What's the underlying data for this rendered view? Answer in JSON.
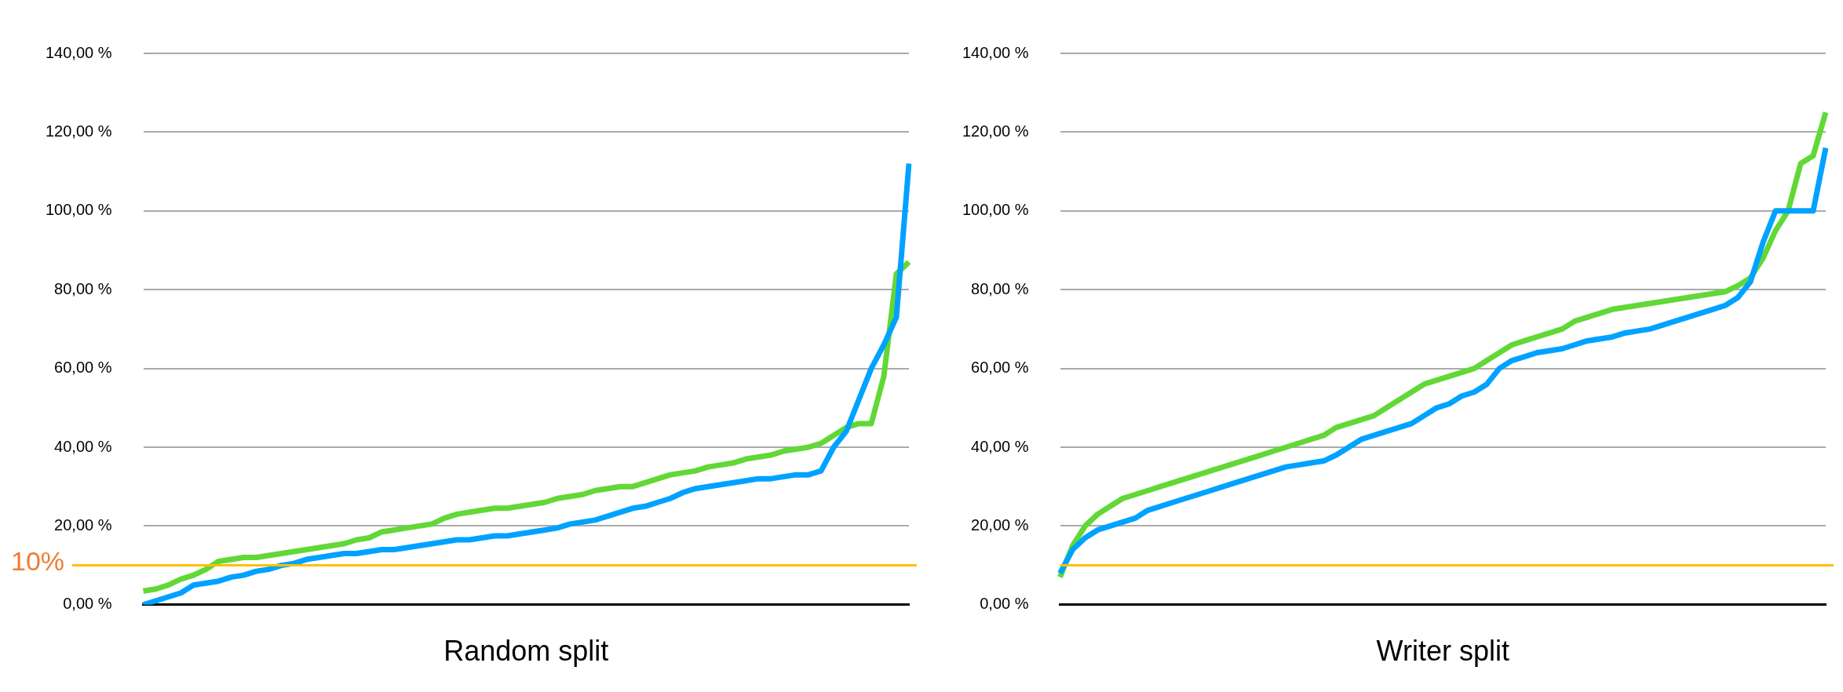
{
  "chart_data": [
    {
      "type": "line",
      "xlabel": "Random split",
      "categories": [
        null,
        null,
        null,
        null,
        null,
        null,
        null,
        null,
        null,
        null,
        null,
        null,
        null,
        null,
        null,
        null,
        null,
        null,
        null,
        null,
        null,
        null,
        null,
        null,
        null,
        null,
        null,
        null,
        null,
        null,
        null,
        null,
        null,
        null,
        null,
        null,
        null,
        null,
        null,
        null,
        null,
        null,
        null,
        null,
        null,
        null,
        null,
        null,
        null,
        null,
        null,
        null,
        null,
        null,
        null,
        null,
        null,
        null,
        null,
        null,
        null,
        null
      ],
      "series": [
        {
          "color": "#00a2ff",
          "values": [
            0,
            1,
            2,
            3,
            5,
            5.5,
            6,
            7,
            7.5,
            8.5,
            9,
            10,
            10.5,
            11.5,
            12,
            12.5,
            13,
            13,
            13.5,
            14,
            14,
            14.5,
            15,
            15.5,
            16,
            16.5,
            16.5,
            17,
            17.5,
            17.5,
            18,
            18.5,
            19,
            19.5,
            20.5,
            21,
            21.5,
            22.5,
            23.5,
            24.5,
            25,
            26,
            27,
            28.5,
            29.5,
            30,
            30.5,
            31,
            31.5,
            32,
            32,
            32.5,
            33,
            33,
            34,
            40,
            44,
            52,
            60,
            66,
            73,
            112
          ]
        },
        {
          "color": "#61d836",
          "values": [
            3.5,
            4,
            5,
            6.5,
            7.5,
            9,
            11,
            11.5,
            12,
            12,
            12.5,
            13,
            13.5,
            14,
            14.5,
            15,
            15.5,
            16.5,
            17,
            18.5,
            19,
            19.5,
            20,
            20.5,
            22,
            23,
            23.5,
            24,
            24.5,
            24.5,
            25,
            25.5,
            26,
            27,
            27.5,
            28,
            29,
            29.5,
            30,
            30,
            31,
            32,
            33,
            33.5,
            34,
            35,
            35.5,
            36,
            37,
            37.5,
            38,
            39,
            39.5,
            40,
            41,
            43,
            45,
            46,
            46,
            58,
            84,
            87
          ]
        }
      ],
      "ylim": [
        0,
        140
      ],
      "yticks": [
        {
          "value": 0,
          "label": "0,00 %"
        },
        {
          "value": 20,
          "label": "20,00 %"
        },
        {
          "value": 40,
          "label": "40,00 %"
        },
        {
          "value": 60,
          "label": "60,00 %"
        },
        {
          "value": 80,
          "label": "80,00 %"
        },
        {
          "value": 100,
          "label": "100,00 %"
        },
        {
          "value": 120,
          "label": "120,00 %"
        },
        {
          "value": 140,
          "label": "140,00 %"
        }
      ],
      "grid": "y",
      "legend": false,
      "marker": "none",
      "line_style": "solid",
      "tick_labels": "y",
      "ref_lines": [
        {
          "axis": "y",
          "value": 10,
          "label": "10%",
          "color": "#ffc000"
        }
      ]
    },
    {
      "type": "line",
      "xlabel": "Writer split",
      "categories": [
        null,
        null,
        null,
        null,
        null,
        null,
        null,
        null,
        null,
        null,
        null,
        null,
        null,
        null,
        null,
        null,
        null,
        null,
        null,
        null,
        null,
        null,
        null,
        null,
        null,
        null,
        null,
        null,
        null,
        null,
        null,
        null,
        null,
        null,
        null,
        null,
        null,
        null,
        null,
        null,
        null,
        null,
        null,
        null,
        null,
        null,
        null,
        null,
        null,
        null,
        null,
        null,
        null,
        null,
        null,
        null,
        null,
        null,
        null,
        null,
        null,
        null
      ],
      "series": [
        {
          "color": "#00a2ff",
          "values": [
            8,
            14,
            17,
            19,
            20,
            21,
            22,
            24,
            25,
            26,
            27,
            28,
            29,
            30,
            31,
            32,
            33,
            34,
            35,
            35.5,
            36,
            36.5,
            38,
            40,
            42,
            43,
            44,
            45,
            46,
            48,
            50,
            51,
            53,
            54,
            56,
            60,
            62,
            63,
            64,
            64.5,
            65,
            66,
            67,
            67.5,
            68,
            69,
            69.5,
            70,
            71,
            72,
            73,
            74,
            75,
            76,
            78,
            82,
            92,
            100,
            100,
            100,
            100,
            116
          ]
        },
        {
          "color": "#61d836",
          "values": [
            7,
            15,
            20,
            23,
            25,
            27,
            28,
            29,
            30,
            31,
            32,
            33,
            34,
            35,
            36,
            37,
            38,
            39,
            40,
            41,
            42,
            43,
            45,
            46,
            47,
            48,
            50,
            52,
            54,
            56,
            57,
            58,
            59,
            60,
            62,
            64,
            66,
            67,
            68,
            69,
            70,
            72,
            73,
            74,
            75,
            75.5,
            76,
            76.5,
            77,
            77.5,
            78,
            78.5,
            79,
            79.5,
            81,
            83,
            88,
            95,
            100,
            112,
            114,
            125
          ]
        }
      ],
      "ylim": [
        0,
        140
      ],
      "yticks": [
        {
          "value": 0,
          "label": "0,00 %"
        },
        {
          "value": 20,
          "label": "20,00 %"
        },
        {
          "value": 40,
          "label": "40,00 %"
        },
        {
          "value": 60,
          "label": "60,00 %"
        },
        {
          "value": 80,
          "label": "80,00 %"
        },
        {
          "value": 100,
          "label": "100,00 %"
        },
        {
          "value": 120,
          "label": "120,00 %"
        },
        {
          "value": 140,
          "label": "140,00 %"
        }
      ],
      "grid": "y",
      "legend": false,
      "marker": "none",
      "line_style": "solid",
      "tick_labels": "y",
      "ref_lines": [
        {
          "axis": "y",
          "value": 10,
          "color": "#ffc000"
        }
      ]
    }
  ]
}
